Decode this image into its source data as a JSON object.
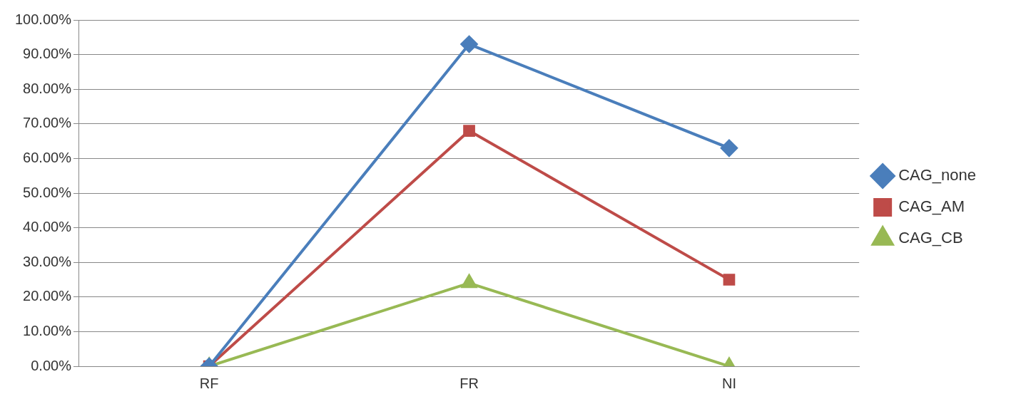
{
  "chart_data": {
    "type": "line",
    "categories": [
      "RF",
      "FR",
      "NI"
    ],
    "series": [
      {
        "name": "CAG_none",
        "color": "#4a7ebb",
        "values": [
          0,
          93,
          63
        ],
        "marker": "diamond"
      },
      {
        "name": "CAG_AM",
        "color": "#be4b48",
        "values": [
          0,
          68,
          25
        ],
        "marker": "square"
      },
      {
        "name": "CAG_CB",
        "color": "#98b954",
        "values": [
          0,
          24,
          0
        ],
        "marker": "triangle"
      }
    ],
    "ylim": [
      0,
      100
    ],
    "yticks": [
      {
        "value": 0,
        "label": "0.00%"
      },
      {
        "value": 10,
        "label": "10.00%"
      },
      {
        "value": 20,
        "label": "20.00%"
      },
      {
        "value": 30,
        "label": "30.00%"
      },
      {
        "value": 40,
        "label": "40.00%"
      },
      {
        "value": 50,
        "label": "50.00%"
      },
      {
        "value": 60,
        "label": "60.00%"
      },
      {
        "value": 70,
        "label": "70.00%"
      },
      {
        "value": 80,
        "label": "80.00%"
      },
      {
        "value": 90,
        "label": "90.00%"
      },
      {
        "value": 100,
        "label": "100.00%"
      }
    ],
    "grid": "y",
    "legend": "right"
  }
}
